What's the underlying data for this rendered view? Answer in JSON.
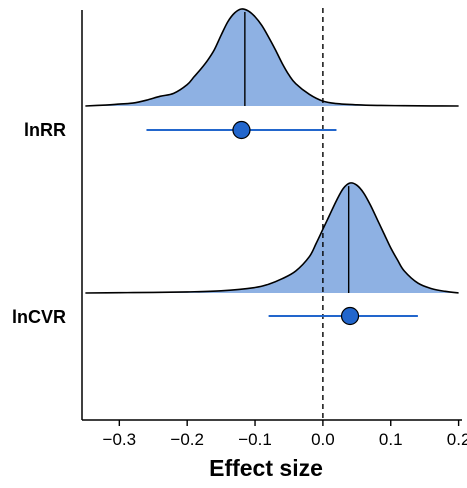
{
  "chart_data": {
    "type": "density-forest",
    "title": "",
    "xlabel": "Effect size",
    "ylabel": "",
    "xlim": [
      -0.355,
      0.205
    ],
    "xticks": [
      -0.3,
      -0.2,
      -0.1,
      0.0,
      0.1,
      0.2
    ],
    "xtick_labels": [
      "−0.3",
      "−0.2",
      "−0.1",
      "0.0",
      "0.1",
      "0.2"
    ],
    "reference_line": 0.0,
    "grid": false,
    "legend": "none",
    "colors": {
      "fill": "#8eb1e3",
      "point": "#2266cc",
      "interval": "#2266cc",
      "outline": "#000000"
    },
    "series": [
      {
        "name": "lnRR",
        "estimate": -0.12,
        "ci": [
          -0.26,
          0.02
        ],
        "density_median": -0.115,
        "density": {
          "x": [
            -0.35,
            -0.32,
            -0.3,
            -0.28,
            -0.26,
            -0.24,
            -0.22,
            -0.2,
            -0.19,
            -0.18,
            -0.17,
            -0.16,
            -0.15,
            -0.14,
            -0.13,
            -0.12,
            -0.11,
            -0.1,
            -0.09,
            -0.08,
            -0.07,
            -0.06,
            -0.05,
            -0.04,
            -0.02,
            0.0,
            0.02,
            0.05,
            0.08,
            0.12,
            0.16,
            0.2
          ],
          "y": [
            0.0,
            0.01,
            0.02,
            0.03,
            0.06,
            0.1,
            0.13,
            0.22,
            0.3,
            0.38,
            0.47,
            0.58,
            0.73,
            0.87,
            0.96,
            1.0,
            0.98,
            0.92,
            0.83,
            0.71,
            0.58,
            0.44,
            0.32,
            0.23,
            0.12,
            0.05,
            0.025,
            0.012,
            0.006,
            0.003,
            0.001,
            0.0
          ]
        }
      },
      {
        "name": "lnCVR",
        "estimate": 0.04,
        "ci": [
          -0.08,
          0.14
        ],
        "density_median": 0.038,
        "density": {
          "x": [
            -0.35,
            -0.3,
            -0.25,
            -0.2,
            -0.15,
            -0.1,
            -0.08,
            -0.06,
            -0.04,
            -0.02,
            -0.01,
            0.0,
            0.01,
            0.02,
            0.03,
            0.04,
            0.05,
            0.06,
            0.07,
            0.08,
            0.09,
            0.1,
            0.11,
            0.12,
            0.14,
            0.16,
            0.18,
            0.2
          ],
          "y": [
            0.0,
            0.003,
            0.005,
            0.01,
            0.02,
            0.05,
            0.08,
            0.13,
            0.2,
            0.33,
            0.45,
            0.58,
            0.71,
            0.84,
            0.95,
            1.0,
            0.98,
            0.91,
            0.8,
            0.67,
            0.54,
            0.41,
            0.3,
            0.2,
            0.09,
            0.04,
            0.015,
            0.0
          ]
        }
      }
    ]
  }
}
